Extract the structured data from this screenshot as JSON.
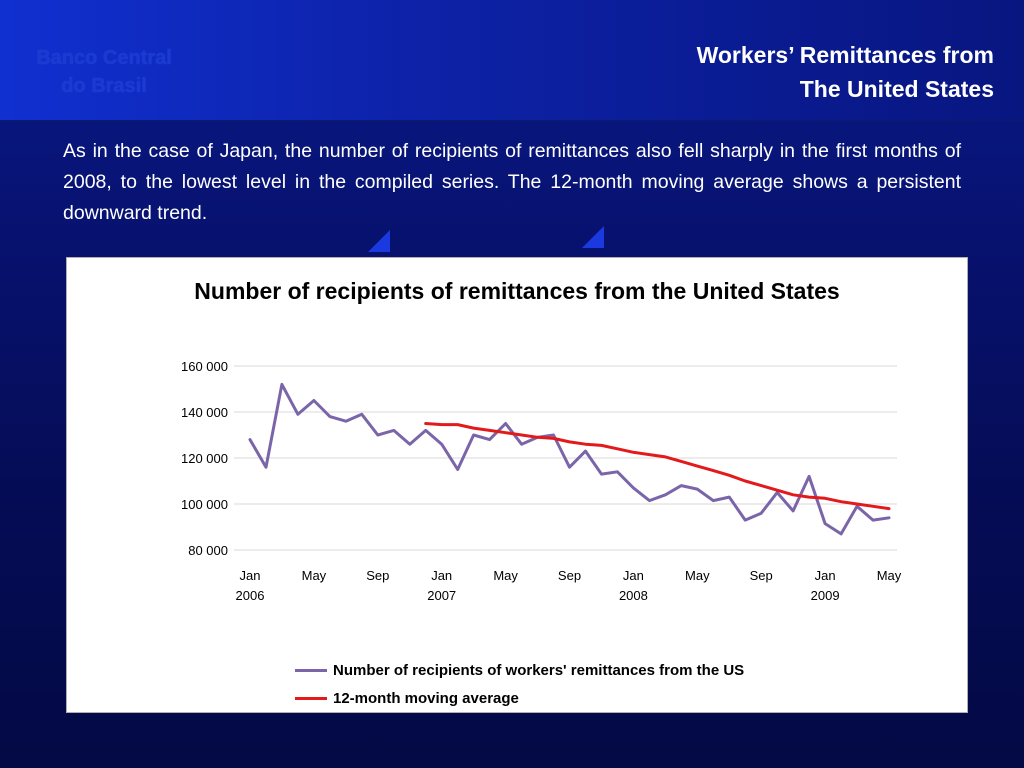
{
  "header": {
    "logo_line1": "Banco Central",
    "logo_line2": "do Brasil",
    "title_line1": "Workers’ Remittances from",
    "title_line2": "The United States"
  },
  "body": {
    "paragraph": "As in the case of Japan, the number of recipients of remittances also fell sharply in the first months of 2008, to the lowest level in the compiled series. The 12-month moving average shows a persistent downward trend."
  },
  "colors": {
    "series_recipients": "#7b65a9",
    "series_moving_average": "#e31a1c",
    "gridline": "#d9d9d9"
  },
  "chart_data": {
    "type": "line",
    "title": "Number of recipients of remittances from the United States",
    "ylim": [
      80000,
      160000
    ],
    "y_ticks": [
      "160 000",
      "140 000",
      "120 000",
      "100 000",
      "80 000"
    ],
    "y_tick_values": [
      160000,
      140000,
      120000,
      100000,
      80000
    ],
    "x_tick_labels": [
      {
        "month": "Jan",
        "year": "2006",
        "index": 0
      },
      {
        "month": "May",
        "year": "",
        "index": 4
      },
      {
        "month": "Sep",
        "year": "",
        "index": 8
      },
      {
        "month": "Jan",
        "year": "2007",
        "index": 12
      },
      {
        "month": "May",
        "year": "",
        "index": 16
      },
      {
        "month": "Sep",
        "year": "",
        "index": 20
      },
      {
        "month": "Jan",
        "year": "2008",
        "index": 24
      },
      {
        "month": "May",
        "year": "",
        "index": 28
      },
      {
        "month": "Sep",
        "year": "",
        "index": 32
      },
      {
        "month": "Jan",
        "year": "2009",
        "index": 36
      },
      {
        "month": "May",
        "year": "",
        "index": 40
      }
    ],
    "x": [
      "Jan 2006",
      "Feb 2006",
      "Mar 2006",
      "Apr 2006",
      "May 2006",
      "Jun 2006",
      "Jul 2006",
      "Aug 2006",
      "Sep 2006",
      "Oct 2006",
      "Nov 2006",
      "Dec 2006",
      "Jan 2007",
      "Feb 2007",
      "Mar 2007",
      "Apr 2007",
      "May 2007",
      "Jun 2007",
      "Jul 2007",
      "Aug 2007",
      "Sep 2007",
      "Oct 2007",
      "Nov 2007",
      "Dec 2007",
      "Jan 2008",
      "Feb 2008",
      "Mar 2008",
      "Apr 2008",
      "May 2008",
      "Jun 2008",
      "Jul 2008",
      "Aug 2008",
      "Sep 2008",
      "Oct 2008",
      "Nov 2008",
      "Dec 2008",
      "Jan 2009",
      "Feb 2009",
      "Mar 2009",
      "Apr 2009",
      "May 2009"
    ],
    "series": [
      {
        "name": "Number of recipients of workers' remittances from the US",
        "values": [
          128000,
          116000,
          152000,
          139000,
          145000,
          138000,
          136000,
          139000,
          130000,
          132000,
          126000,
          132000,
          126000,
          115000,
          130000,
          128000,
          135000,
          126000,
          129000,
          130000,
          116000,
          123000,
          113000,
          114000,
          107000,
          101500,
          104000,
          108000,
          106500,
          101500,
          103000,
          93000,
          96000,
          105000,
          97000,
          112000,
          91500,
          87000,
          99000,
          93000,
          94000
        ]
      },
      {
        "name": "12-month moving average",
        "values": [
          null,
          null,
          null,
          null,
          null,
          null,
          null,
          null,
          null,
          null,
          null,
          135000,
          134500,
          134500,
          133000,
          132000,
          131000,
          130000,
          129000,
          128500,
          127000,
          126000,
          125500,
          124000,
          122500,
          121500,
          120500,
          118500,
          116500,
          114500,
          112500,
          110000,
          108000,
          106000,
          104000,
          103000,
          102500,
          101000,
          100000,
          99000,
          98000
        ]
      }
    ],
    "legend_placement": "bottom",
    "grid": true
  }
}
